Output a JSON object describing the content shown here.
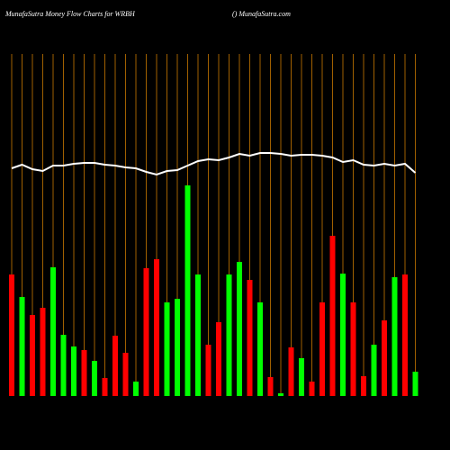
{
  "chart_data": {
    "type": "bar",
    "title": "MunafaSutra  Money Flow  Charts for WRBH",
    "subtitle": "() MunafaSutra.com",
    "background": "#000000",
    "gridline_color": "#c87800",
    "categories": [
      null,
      null,
      null,
      null,
      null,
      null,
      null,
      null,
      null,
      null,
      null,
      null,
      null,
      null,
      null,
      null,
      null,
      null,
      null,
      null,
      null,
      null,
      null,
      null,
      null,
      null,
      null,
      null,
      null,
      null,
      null,
      null,
      null,
      null,
      null,
      null,
      null,
      null,
      null,
      null
    ],
    "values": [
      135,
      110,
      90,
      98,
      143,
      68,
      55,
      51,
      39,
      20,
      67,
      48,
      16,
      142,
      152,
      104,
      108,
      234,
      135,
      57,
      82,
      135,
      149,
      129,
      104,
      21,
      3,
      54,
      42,
      16,
      104,
      178,
      136,
      104,
      22,
      57,
      84,
      132,
      135,
      27
    ],
    "colors": [
      "#ff0000",
      "#00ff00",
      "#ff0000",
      "#ff0000",
      "#00ff00",
      "#00ff00",
      "#00ff00",
      "#ff0000",
      "#00ff00",
      "#ff0000",
      "#ff0000",
      "#ff0000",
      "#00ff00",
      "#ff0000",
      "#ff0000",
      "#00ff00",
      "#00ff00",
      "#00ff00",
      "#00ff00",
      "#ff0000",
      "#ff0000",
      "#00ff00",
      "#00ff00",
      "#ff0000",
      "#00ff00",
      "#ff0000",
      "#00ff00",
      "#ff0000",
      "#00ff00",
      "#ff0000",
      "#ff0000",
      "#ff0000",
      "#00ff00",
      "#ff0000",
      "#ff0000",
      "#00ff00",
      "#ff0000",
      "#00ff00",
      "#ff0000",
      "#00ff00"
    ],
    "line": {
      "color": "#ffffff",
      "values": [
        253,
        257,
        252,
        250,
        256,
        256,
        258,
        259,
        259,
        257,
        256,
        254,
        253,
        249,
        246,
        250,
        251,
        256,
        261,
        263,
        262,
        265,
        269,
        267,
        270,
        270,
        269,
        267,
        268,
        268,
        267,
        265,
        260,
        262,
        257,
        256,
        258,
        256,
        258,
        248
      ]
    }
  }
}
